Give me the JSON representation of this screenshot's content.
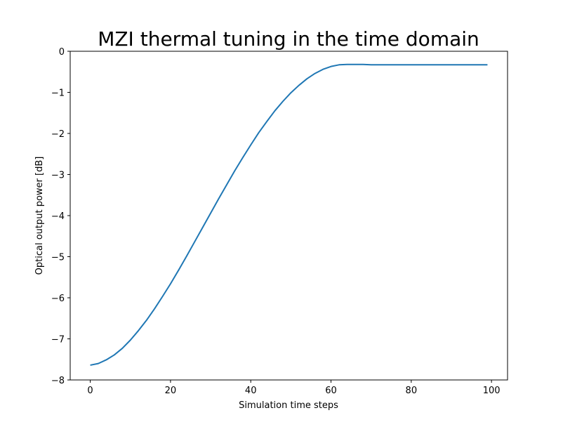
{
  "chart_data": {
    "type": "line",
    "title": "MZI thermal tuning in the time domain",
    "xlabel": "Simulation time steps",
    "ylabel": "Optical output power [dB]",
    "xlim": [
      -5,
      104
    ],
    "ylim": [
      -8,
      0
    ],
    "x_ticks": [
      0,
      20,
      40,
      60,
      80,
      100
    ],
    "y_ticks": [
      0,
      -1,
      -2,
      -3,
      -4,
      -5,
      -6,
      -7,
      -8
    ],
    "x_tick_labels": [
      "0",
      "20",
      "40",
      "60",
      "80",
      "100"
    ],
    "y_tick_labels": [
      "0",
      "−1",
      "−2",
      "−3",
      "−4",
      "−5",
      "−6",
      "−7",
      "−8"
    ],
    "grid": false,
    "line_color": "#1f77b4",
    "series": [
      {
        "x": [
          0,
          2,
          4,
          6,
          8,
          10,
          12,
          14,
          16,
          18,
          20,
          22,
          24,
          26,
          28,
          30,
          32,
          34,
          36,
          38,
          40,
          42,
          44,
          46,
          48,
          50,
          52,
          54,
          56,
          58,
          60,
          62,
          64,
          66,
          68,
          70,
          75,
          80,
          85,
          90,
          95,
          99
        ],
        "values": [
          -7.64,
          -7.6,
          -7.51,
          -7.39,
          -7.23,
          -7.03,
          -6.8,
          -6.55,
          -6.27,
          -5.97,
          -5.66,
          -5.33,
          -4.99,
          -4.64,
          -4.29,
          -3.94,
          -3.59,
          -3.25,
          -2.91,
          -2.59,
          -2.28,
          -1.98,
          -1.71,
          -1.45,
          -1.22,
          -1.01,
          -0.83,
          -0.67,
          -0.54,
          -0.44,
          -0.37,
          -0.33,
          -0.32,
          -0.32,
          -0.32,
          -0.33,
          -0.33,
          -0.33,
          -0.33,
          -0.33,
          -0.33,
          -0.33
        ]
      }
    ]
  }
}
